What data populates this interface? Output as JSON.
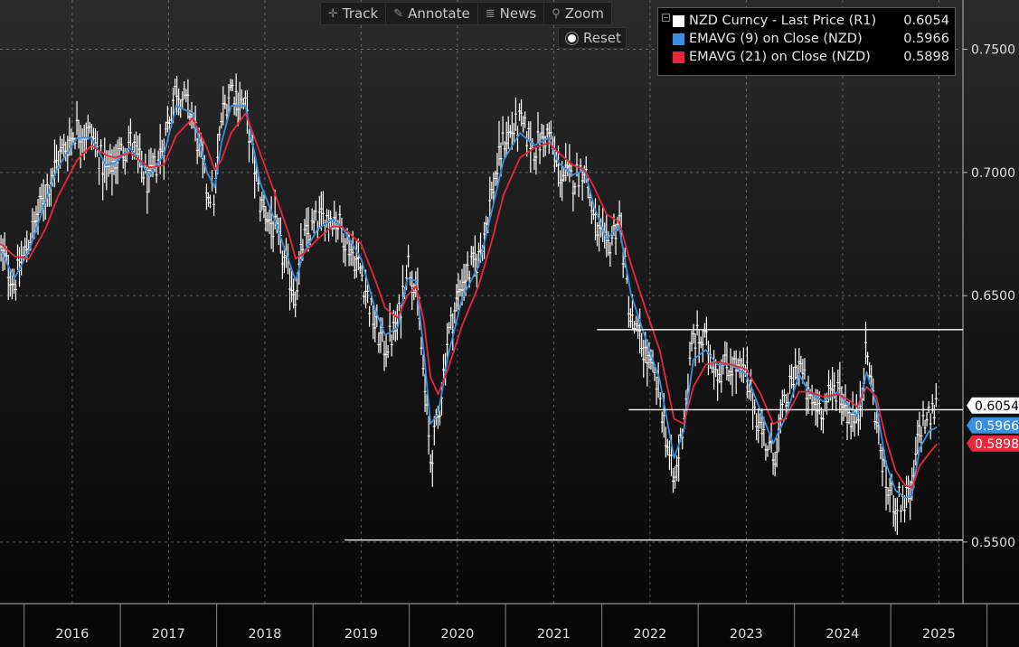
{
  "toolbar": {
    "track": "Track",
    "annotate": "Annotate",
    "news": "News",
    "zoom": "Zoom",
    "reset": "Reset"
  },
  "legend": [
    {
      "label": "NZD Curncy  - Last Price (R1)",
      "value": "0.6054",
      "color": "#ffffff"
    },
    {
      "label": "EMAVG (9)  on Close (NZD)",
      "value": "0.5966",
      "color": "#3a8fe0"
    },
    {
      "label": "EMAVG (21)  on Close (NZD)",
      "value": "0.5898",
      "color": "#e8283a"
    }
  ],
  "chart_data": {
    "type": "line",
    "title": "",
    "y_axis": {
      "side": "right",
      "ticks": [
        "0.7500",
        "0.7000",
        "0.6500",
        "0.5500"
      ],
      "range": [
        0.525,
        0.77
      ]
    },
    "x_axis": {
      "labels": [
        "2016",
        "2017",
        "2018",
        "2019",
        "2020",
        "2021",
        "2022",
        "2023",
        "2024",
        "2025"
      ],
      "range": [
        2015.75,
        2025.75
      ]
    },
    "grid": true,
    "legend_position": "top-right",
    "horizontal_lines": [
      {
        "y": 0.6362,
        "x_start": 2021.95
      },
      {
        "y": 0.6037,
        "x_start": 2022.28
      },
      {
        "y": 0.5508,
        "x_start": 2019.33
      }
    ],
    "last_value_labels": [
      {
        "text": "0.6054",
        "y": 0.6054,
        "color": "#ffffff",
        "text_color": "#000000"
      },
      {
        "text": "0.5966",
        "y": 0.5966,
        "color": "#3a8fe0",
        "text_color": "#ffffff"
      },
      {
        "text": "0.5898",
        "y": 0.5898,
        "color": "#e8283a",
        "text_color": "#ffffff"
      }
    ],
    "price_bar_color": "#ffffff",
    "price_anchors": [
      [
        2015.76,
        0.668
      ],
      [
        2015.9,
        0.655
      ],
      [
        2016.05,
        0.672
      ],
      [
        2016.22,
        0.692
      ],
      [
        2016.35,
        0.705
      ],
      [
        2016.55,
        0.718
      ],
      [
        2016.7,
        0.715
      ],
      [
        2016.85,
        0.7
      ],
      [
        2016.95,
        0.705
      ],
      [
        2017.1,
        0.713
      ],
      [
        2017.3,
        0.695
      ],
      [
        2017.45,
        0.712
      ],
      [
        2017.58,
        0.735
      ],
      [
        2017.75,
        0.723
      ],
      [
        2017.9,
        0.693
      ],
      [
        2017.98,
        0.69
      ],
      [
        2018.05,
        0.722
      ],
      [
        2018.15,
        0.735
      ],
      [
        2018.3,
        0.726
      ],
      [
        2018.45,
        0.688
      ],
      [
        2018.6,
        0.677
      ],
      [
        2018.75,
        0.658
      ],
      [
        2018.82,
        0.651
      ],
      [
        2018.9,
        0.672
      ],
      [
        2019.05,
        0.68
      ],
      [
        2019.2,
        0.683
      ],
      [
        2019.3,
        0.677
      ],
      [
        2019.5,
        0.66
      ],
      [
        2019.65,
        0.637
      ],
      [
        2019.75,
        0.629
      ],
      [
        2019.88,
        0.638
      ],
      [
        2019.98,
        0.664
      ],
      [
        2020.07,
        0.655
      ],
      [
        2020.15,
        0.617
      ],
      [
        2020.22,
        0.583
      ],
      [
        2020.3,
        0.6
      ],
      [
        2020.4,
        0.633
      ],
      [
        2020.55,
        0.656
      ],
      [
        2020.72,
        0.665
      ],
      [
        2020.85,
        0.69
      ],
      [
        2020.98,
        0.713
      ],
      [
        2021.15,
        0.72
      ],
      [
        2021.3,
        0.71
      ],
      [
        2021.45,
        0.716
      ],
      [
        2021.55,
        0.7
      ],
      [
        2021.7,
        0.697
      ],
      [
        2021.82,
        0.703
      ],
      [
        2021.92,
        0.68
      ],
      [
        2022.05,
        0.668
      ],
      [
        2022.18,
        0.682
      ],
      [
        2022.3,
        0.64
      ],
      [
        2022.45,
        0.627
      ],
      [
        2022.6,
        0.61
      ],
      [
        2022.75,
        0.572
      ],
      [
        2022.85,
        0.6
      ],
      [
        2022.95,
        0.633
      ],
      [
        2023.08,
        0.631
      ],
      [
        2023.2,
        0.62
      ],
      [
        2023.35,
        0.622
      ],
      [
        2023.5,
        0.617
      ],
      [
        2023.65,
        0.596
      ],
      [
        2023.78,
        0.584
      ],
      [
        2023.9,
        0.605
      ],
      [
        2024.05,
        0.624
      ],
      [
        2024.15,
        0.607
      ],
      [
        2024.3,
        0.605
      ],
      [
        2024.45,
        0.614
      ],
      [
        2024.55,
        0.603
      ],
      [
        2024.65,
        0.598
      ],
      [
        2024.75,
        0.628
      ],
      [
        2024.85,
        0.6
      ],
      [
        2024.95,
        0.573
      ],
      [
        2025.05,
        0.566
      ],
      [
        2025.15,
        0.567
      ],
      [
        2025.22,
        0.569
      ],
      [
        2025.3,
        0.597
      ],
      [
        2025.4,
        0.6
      ],
      [
        2025.48,
        0.6054
      ]
    ],
    "series": [
      {
        "name": "EMAVG (9)  on Close (NZD)",
        "color": "#3a8fe0",
        "points": [
          [
            2015.76,
            0.668
          ],
          [
            2015.9,
            0.657
          ],
          [
            2016.05,
            0.668
          ],
          [
            2016.22,
            0.688
          ],
          [
            2016.35,
            0.702
          ],
          [
            2016.55,
            0.714
          ],
          [
            2016.7,
            0.714
          ],
          [
            2016.85,
            0.703
          ],
          [
            2016.95,
            0.704
          ],
          [
            2017.1,
            0.71
          ],
          [
            2017.3,
            0.699
          ],
          [
            2017.45,
            0.707
          ],
          [
            2017.58,
            0.727
          ],
          [
            2017.75,
            0.724
          ],
          [
            2017.9,
            0.7
          ],
          [
            2017.98,
            0.694
          ],
          [
            2018.05,
            0.712
          ],
          [
            2018.15,
            0.727
          ],
          [
            2018.3,
            0.727
          ],
          [
            2018.45,
            0.696
          ],
          [
            2018.6,
            0.681
          ],
          [
            2018.75,
            0.664
          ],
          [
            2018.82,
            0.656
          ],
          [
            2018.9,
            0.667
          ],
          [
            2019.05,
            0.677
          ],
          [
            2019.2,
            0.681
          ],
          [
            2019.3,
            0.678
          ],
          [
            2019.5,
            0.665
          ],
          [
            2019.65,
            0.644
          ],
          [
            2019.75,
            0.634
          ],
          [
            2019.88,
            0.637
          ],
          [
            2019.98,
            0.657
          ],
          [
            2020.07,
            0.656
          ],
          [
            2020.15,
            0.628
          ],
          [
            2020.22,
            0.598
          ],
          [
            2020.3,
            0.602
          ],
          [
            2020.4,
            0.625
          ],
          [
            2020.55,
            0.649
          ],
          [
            2020.72,
            0.662
          ],
          [
            2020.85,
            0.683
          ],
          [
            2020.98,
            0.705
          ],
          [
            2021.15,
            0.716
          ],
          [
            2021.3,
            0.711
          ],
          [
            2021.45,
            0.714
          ],
          [
            2021.55,
            0.704
          ],
          [
            2021.7,
            0.699
          ],
          [
            2021.82,
            0.701
          ],
          [
            2021.92,
            0.686
          ],
          [
            2022.05,
            0.673
          ],
          [
            2022.18,
            0.678
          ],
          [
            2022.3,
            0.651
          ],
          [
            2022.45,
            0.633
          ],
          [
            2022.6,
            0.616
          ],
          [
            2022.75,
            0.584
          ],
          [
            2022.85,
            0.595
          ],
          [
            2022.95,
            0.624
          ],
          [
            2023.08,
            0.628
          ],
          [
            2023.2,
            0.622
          ],
          [
            2023.35,
            0.622
          ],
          [
            2023.5,
            0.618
          ],
          [
            2023.65,
            0.603
          ],
          [
            2023.78,
            0.59
          ],
          [
            2023.9,
            0.6
          ],
          [
            2024.05,
            0.618
          ],
          [
            2024.15,
            0.611
          ],
          [
            2024.3,
            0.607
          ],
          [
            2024.45,
            0.611
          ],
          [
            2024.55,
            0.606
          ],
          [
            2024.65,
            0.601
          ],
          [
            2024.75,
            0.619
          ],
          [
            2024.85,
            0.606
          ],
          [
            2024.95,
            0.582
          ],
          [
            2025.05,
            0.571
          ],
          [
            2025.15,
            0.568
          ],
          [
            2025.22,
            0.569
          ],
          [
            2025.3,
            0.588
          ],
          [
            2025.4,
            0.595
          ],
          [
            2025.48,
            0.5966
          ]
        ]
      },
      {
        "name": "EMAVG (21)  on Close (NZD)",
        "color": "#e8283a",
        "points": [
          [
            2015.76,
            0.671
          ],
          [
            2015.9,
            0.666
          ],
          [
            2016.05,
            0.665
          ],
          [
            2016.22,
            0.677
          ],
          [
            2016.35,
            0.69
          ],
          [
            2016.55,
            0.705
          ],
          [
            2016.7,
            0.711
          ],
          [
            2016.85,
            0.707
          ],
          [
            2016.95,
            0.706
          ],
          [
            2017.1,
            0.708
          ],
          [
            2017.3,
            0.702
          ],
          [
            2017.45,
            0.703
          ],
          [
            2017.58,
            0.715
          ],
          [
            2017.75,
            0.722
          ],
          [
            2017.9,
            0.71
          ],
          [
            2017.98,
            0.701
          ],
          [
            2018.05,
            0.705
          ],
          [
            2018.15,
            0.716
          ],
          [
            2018.3,
            0.724
          ],
          [
            2018.45,
            0.708
          ],
          [
            2018.6,
            0.692
          ],
          [
            2018.75,
            0.675
          ],
          [
            2018.82,
            0.665
          ],
          [
            2018.9,
            0.667
          ],
          [
            2019.05,
            0.673
          ],
          [
            2019.2,
            0.678
          ],
          [
            2019.3,
            0.678
          ],
          [
            2019.5,
            0.671
          ],
          [
            2019.65,
            0.656
          ],
          [
            2019.75,
            0.645
          ],
          [
            2019.88,
            0.641
          ],
          [
            2019.98,
            0.65
          ],
          [
            2020.07,
            0.654
          ],
          [
            2020.15,
            0.64
          ],
          [
            2020.22,
            0.617
          ],
          [
            2020.3,
            0.61
          ],
          [
            2020.4,
            0.62
          ],
          [
            2020.55,
            0.638
          ],
          [
            2020.72,
            0.654
          ],
          [
            2020.85,
            0.671
          ],
          [
            2020.98,
            0.691
          ],
          [
            2021.15,
            0.706
          ],
          [
            2021.3,
            0.71
          ],
          [
            2021.45,
            0.712
          ],
          [
            2021.55,
            0.708
          ],
          [
            2021.7,
            0.703
          ],
          [
            2021.82,
            0.701
          ],
          [
            2021.92,
            0.694
          ],
          [
            2022.05,
            0.683
          ],
          [
            2022.18,
            0.68
          ],
          [
            2022.3,
            0.663
          ],
          [
            2022.45,
            0.645
          ],
          [
            2022.6,
            0.628
          ],
          [
            2022.75,
            0.6
          ],
          [
            2022.85,
            0.598
          ],
          [
            2022.95,
            0.613
          ],
          [
            2023.08,
            0.622
          ],
          [
            2023.2,
            0.623
          ],
          [
            2023.35,
            0.622
          ],
          [
            2023.5,
            0.62
          ],
          [
            2023.65,
            0.61
          ],
          [
            2023.78,
            0.598
          ],
          [
            2023.9,
            0.6
          ],
          [
            2024.05,
            0.611
          ],
          [
            2024.15,
            0.611
          ],
          [
            2024.3,
            0.609
          ],
          [
            2024.45,
            0.61
          ],
          [
            2024.55,
            0.608
          ],
          [
            2024.65,
            0.605
          ],
          [
            2024.75,
            0.613
          ],
          [
            2024.85,
            0.609
          ],
          [
            2024.95,
            0.592
          ],
          [
            2025.05,
            0.579
          ],
          [
            2025.15,
            0.573
          ],
          [
            2025.22,
            0.572
          ],
          [
            2025.3,
            0.581
          ],
          [
            2025.4,
            0.586
          ],
          [
            2025.48,
            0.5898
          ]
        ]
      }
    ]
  }
}
